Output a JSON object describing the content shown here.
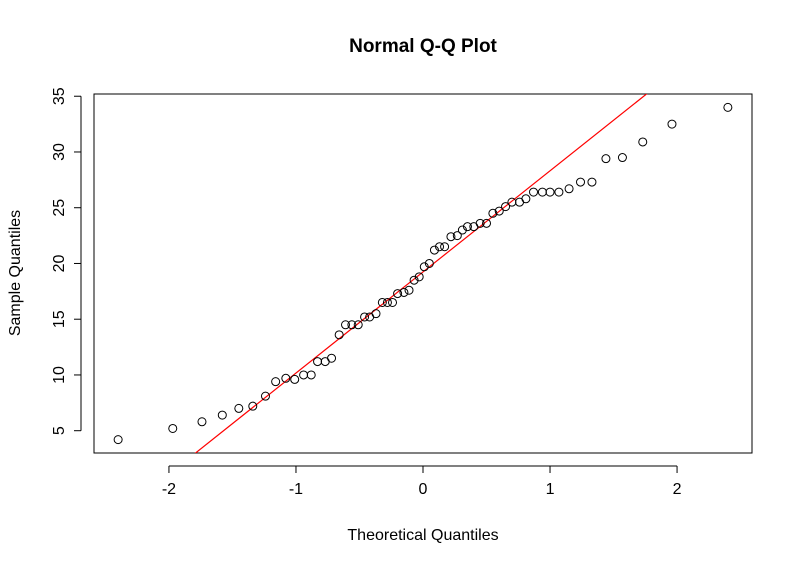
{
  "chart_data": {
    "type": "qq",
    "title": "Normal Q-Q Plot",
    "x_label": "Theoretical Quantiles",
    "y_label": "Sample Quantiles",
    "x": [
      -2.4,
      -1.97,
      -1.74,
      -1.58,
      -1.45,
      -1.34,
      -1.24,
      -1.16,
      -1.08,
      -1.01,
      -0.94,
      -0.88,
      -0.83,
      -0.77,
      -0.72,
      -0.66,
      -0.61,
      -0.56,
      -0.51,
      -0.46,
      -0.42,
      -0.37,
      -0.32,
      -0.28,
      -0.24,
      -0.2,
      -0.15,
      -0.11,
      -0.07,
      -0.03,
      0.01,
      0.05,
      0.09,
      0.13,
      0.17,
      0.22,
      0.27,
      0.31,
      0.35,
      0.4,
      0.45,
      0.5,
      0.55,
      0.6,
      0.65,
      0.7,
      0.76,
      0.81,
      0.87,
      0.94,
      1.0,
      1.07,
      1.15,
      1.24,
      1.33,
      1.44,
      1.57,
      1.73,
      1.96,
      2.4
    ],
    "values": [
      4.2,
      5.2,
      5.8,
      6.4,
      7.0,
      7.2,
      8.1,
      9.4,
      9.7,
      9.6,
      10.0,
      10.0,
      11.2,
      11.2,
      11.5,
      13.6,
      14.5,
      14.5,
      14.5,
      15.2,
      15.2,
      15.5,
      16.5,
      16.5,
      16.5,
      17.3,
      17.4,
      17.6,
      18.5,
      18.8,
      19.7,
      20.0,
      21.2,
      21.5,
      21.5,
      22.4,
      22.5,
      23.0,
      23.3,
      23.3,
      23.6,
      23.6,
      24.5,
      24.7,
      25.1,
      25.5,
      25.5,
      25.8,
      26.4,
      26.4,
      26.4,
      26.4,
      26.7,
      27.3,
      27.3,
      29.4,
      29.5,
      30.9,
      32.5,
      34.0
    ],
    "qq_line": {
      "intercept": 19.24,
      "slope": 9.07,
      "color": "red"
    },
    "xlim": [
      -2.59,
      2.59
    ],
    "ylim": [
      3.0,
      35.2
    ],
    "xticks": [
      -2,
      -1,
      0,
      1,
      2
    ],
    "yticks": [
      5,
      10,
      15,
      20,
      25,
      30,
      35
    ]
  }
}
